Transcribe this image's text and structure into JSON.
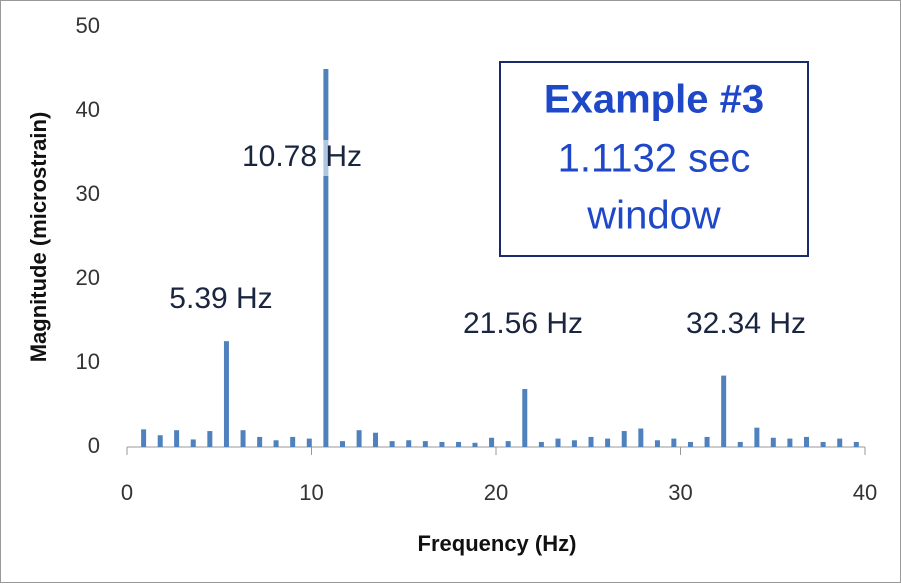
{
  "chart_data": {
    "type": "bar",
    "x_label": "Frequency (Hz)",
    "y_label": "Magnitude (microstrain)",
    "color": "#4f81bd",
    "x": [
      0.9,
      1.8,
      2.69,
      3.59,
      4.49,
      5.39,
      6.29,
      7.19,
      8.08,
      8.98,
      9.88,
      10.78,
      11.68,
      12.58,
      13.47,
      14.37,
      15.27,
      16.17,
      17.07,
      17.97,
      18.86,
      19.76,
      20.66,
      21.56,
      22.46,
      23.36,
      24.25,
      25.15,
      26.05,
      26.95,
      27.85,
      28.75,
      29.64,
      30.54,
      31.44,
      32.34,
      33.24,
      34.14,
      35.03,
      35.93,
      36.83,
      37.73,
      38.63,
      39.53
    ],
    "values": [
      2.1,
      1.4,
      2.0,
      0.9,
      1.9,
      12.6,
      2.0,
      1.2,
      0.8,
      1.2,
      1.0,
      45,
      0.7,
      2.0,
      1.7,
      0.7,
      0.8,
      0.7,
      0.6,
      0.6,
      0.5,
      1.1,
      0.7,
      6.9,
      0.6,
      1.0,
      0.8,
      1.2,
      1.0,
      1.9,
      2.2,
      0.8,
      1.0,
      0.6,
      1.2,
      8.5,
      0.6,
      2.3,
      1.1,
      1.0,
      1.2,
      0.6,
      1.0,
      0.6
    ],
    "xlim": [
      0,
      40
    ],
    "xticks": [
      0,
      10,
      20,
      30,
      40
    ],
    "ylim": [
      0,
      50
    ],
    "yticks": [
      0,
      10,
      20,
      30,
      40,
      50
    ],
    "grid": false,
    "annotations": [
      "5.39 Hz",
      "10.78 Hz",
      "21.56 Hz",
      "32.34 Hz"
    ],
    "box": {
      "title": "Example #3",
      "lines": [
        "1.1132 sec",
        "window"
      ]
    }
  }
}
